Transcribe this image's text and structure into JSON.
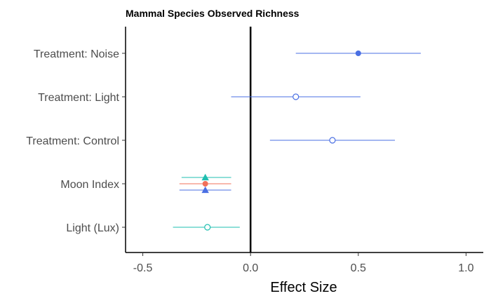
{
  "chart_data": {
    "type": "scatter",
    "title": "Mammal Species Observed Richness",
    "xlabel": "Effect Size",
    "ylabel": "",
    "xlim": [
      -0.58,
      1.08
    ],
    "xticks": [
      -0.5,
      0.0,
      0.5,
      1.0
    ],
    "xtick_labels": [
      "-0.5",
      "0.0",
      "0.5",
      "1.0"
    ],
    "categories": [
      "Treatment: Noise",
      "Treatment: Light",
      "Treatment: Control",
      "Moon Index",
      "Light (Lux)"
    ],
    "reference_line_x": 0,
    "grid": false,
    "points": [
      {
        "category": "Treatment: Noise",
        "estimate": 0.5,
        "low": 0.21,
        "high": 0.79,
        "color": "#4a6fe3",
        "marker": "filled-circle",
        "offset": 0
      },
      {
        "category": "Treatment: Light",
        "estimate": 0.21,
        "low": -0.09,
        "high": 0.51,
        "color": "#4a6fe3",
        "marker": "open-circle",
        "offset": 0
      },
      {
        "category": "Treatment: Control",
        "estimate": 0.38,
        "low": 0.09,
        "high": 0.67,
        "color": "#4a6fe3",
        "marker": "open-circle",
        "offset": 0
      },
      {
        "category": "Moon Index",
        "estimate": -0.21,
        "low": -0.32,
        "high": -0.09,
        "color": "#1fbfb0",
        "marker": "filled-triangle",
        "offset": -1
      },
      {
        "category": "Moon Index",
        "estimate": -0.21,
        "low": -0.33,
        "high": -0.09,
        "color": "#f0705a",
        "marker": "filled-circle",
        "offset": 0
      },
      {
        "category": "Moon Index",
        "estimate": -0.21,
        "low": -0.33,
        "high": -0.09,
        "color": "#4a6fe3",
        "marker": "filled-triangle",
        "offset": 1
      },
      {
        "category": "Light (Lux)",
        "estimate": -0.2,
        "low": -0.36,
        "high": -0.05,
        "color": "#1fbfb0",
        "marker": "open-circle",
        "offset": 0
      }
    ]
  }
}
